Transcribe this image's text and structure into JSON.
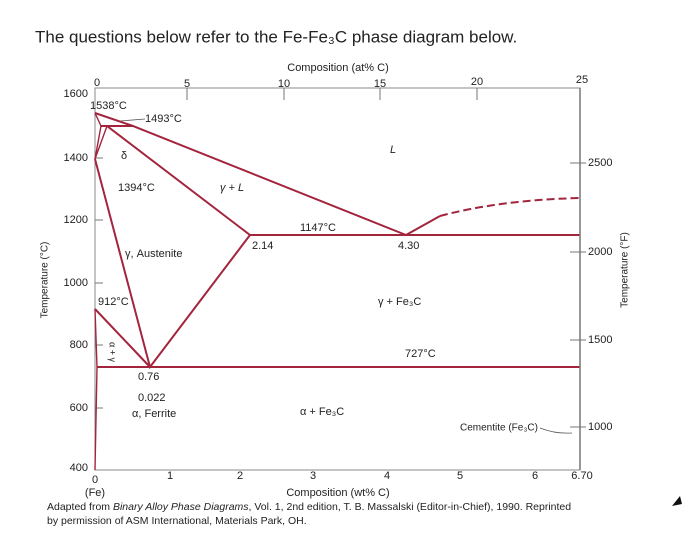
{
  "title": "The questions below refer to the Fe-Fe₃C phase diagram below.",
  "diagram": {
    "top_axis": {
      "label": "Composition (at% C)",
      "ticks": [
        "0",
        "5",
        "10",
        "15",
        "20",
        "25"
      ]
    },
    "left_axis": {
      "label": "Temperature (°C)",
      "ticks": [
        "1600",
        "1400",
        "1200",
        "1000",
        "800",
        "600",
        "400"
      ]
    },
    "right_axis": {
      "label": "Temperature (°F)",
      "ticks": [
        "2500",
        "2000",
        "1500",
        "1000"
      ]
    },
    "bottom_axis": {
      "label": "Composition (wt% C)",
      "origin_note": "(Fe)",
      "ticks": [
        "0",
        "1",
        "2",
        "3",
        "4",
        "5",
        "6",
        "6.70"
      ]
    },
    "labels": [
      "1538°C",
      "1493°C",
      "δ",
      "1394°C",
      "γ + L",
      "L",
      "1147°C",
      "2.14",
      "4.30",
      "γ, Austenite",
      "912°C",
      "γ + Fe₃C",
      "727°C",
      "0.76",
      "0.022",
      "α, Ferrite",
      "α + Fe₃C",
      "Cementite (Fe₃C)",
      "α + γ"
    ]
  },
  "caption": [
    "Adapted from ",
    "Binary Alloy Phase Diagrams",
    ", Vol. 1, 2nd edition, T. B. Massalski (Editor-in-Chief), 1990. Reprinted",
    "by permission of ASM International, Materials Park, OH."
  ]
}
